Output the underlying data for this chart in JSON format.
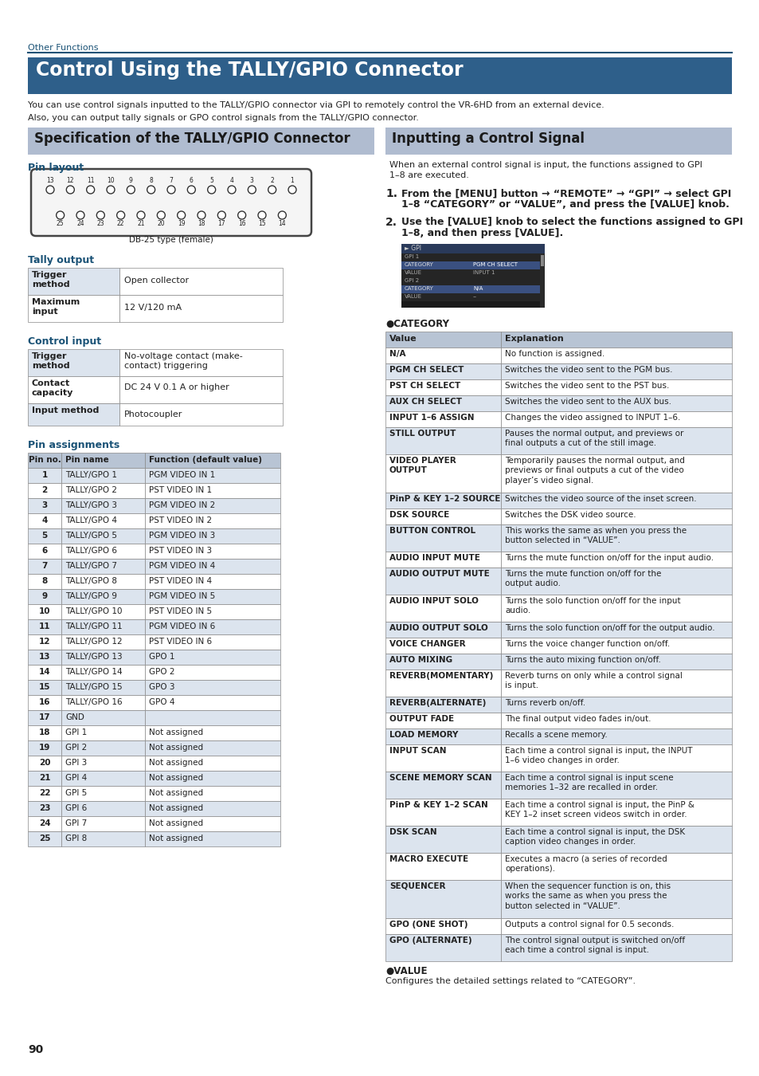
{
  "page_bg": "#ffffff",
  "section_label": "Other Functions",
  "section_label_color": "#1a5276",
  "main_title": "Control Using the TALLY/GPIO Connector",
  "main_title_bg": "#2e5f8a",
  "main_title_color": "#ffffff",
  "intro_lines": [
    "You can use control signals inputted to the TALLY/GPIO connector via GPI to remotely control the VR-6HD from an external device.",
    "Also, you can output tally signals or GPO control signals from the TALLY/GPIO connector."
  ],
  "left_section_title": "Specification of the TALLY/GPIO Connector",
  "right_section_title": "Inputting a Control Signal",
  "section_header_bg": "#b0bcd0",
  "pin_layout_label": "Pin layout",
  "pin_label_color": "#1a5276",
  "db25_label": "DB-25 type (female)",
  "tally_output_label": "Tally output",
  "control_input_label": "Control input",
  "pin_assignments_label": "Pin assignments",
  "tally_output_rows": [
    [
      "Trigger\nmethod",
      "Open collector"
    ],
    [
      "Maximum\ninput",
      "12 V/120 mA"
    ]
  ],
  "control_input_rows": [
    [
      "Trigger\nmethod",
      "No-voltage contact (make-\ncontact) triggering"
    ],
    [
      "Contact\ncapacity",
      "DC 24 V 0.1 A or higher"
    ],
    [
      "Input method",
      "Photocoupler"
    ]
  ],
  "pin_assignments_header": [
    "Pin no.",
    "Pin name",
    "Function (default value)"
  ],
  "pin_assignments_rows": [
    [
      "1",
      "TALLY/GPO 1",
      "PGM VIDEO IN 1"
    ],
    [
      "2",
      "TALLY/GPO 2",
      "PST VIDEO IN 1"
    ],
    [
      "3",
      "TALLY/GPO 3",
      "PGM VIDEO IN 2"
    ],
    [
      "4",
      "TALLY/GPO 4",
      "PST VIDEO IN 2"
    ],
    [
      "5",
      "TALLY/GPO 5",
      "PGM VIDEO IN 3"
    ],
    [
      "6",
      "TALLY/GPO 6",
      "PST VIDEO IN 3"
    ],
    [
      "7",
      "TALLY/GPO 7",
      "PGM VIDEO IN 4"
    ],
    [
      "8",
      "TALLY/GPO 8",
      "PST VIDEO IN 4"
    ],
    [
      "9",
      "TALLY/GPO 9",
      "PGM VIDEO IN 5"
    ],
    [
      "10",
      "TALLY/GPO 10",
      "PST VIDEO IN 5"
    ],
    [
      "11",
      "TALLY/GPO 11",
      "PGM VIDEO IN 6"
    ],
    [
      "12",
      "TALLY/GPO 12",
      "PST VIDEO IN 6"
    ],
    [
      "13",
      "TALLY/GPO 13",
      "GPO 1"
    ],
    [
      "14",
      "TALLY/GPO 14",
      "GPO 2"
    ],
    [
      "15",
      "TALLY/GPO 15",
      "GPO 3"
    ],
    [
      "16",
      "TALLY/GPO 16",
      "GPO 4"
    ],
    [
      "17",
      "GND",
      ""
    ],
    [
      "18",
      "GPI 1",
      "Not assigned"
    ],
    [
      "19",
      "GPI 2",
      "Not assigned"
    ],
    [
      "20",
      "GPI 3",
      "Not assigned"
    ],
    [
      "21",
      "GPI 4",
      "Not assigned"
    ],
    [
      "22",
      "GPI 5",
      "Not assigned"
    ],
    [
      "23",
      "GPI 6",
      "Not assigned"
    ],
    [
      "24",
      "GPI 7",
      "Not assigned"
    ],
    [
      "25",
      "GPI 8",
      "Not assigned"
    ]
  ],
  "category_rows": [
    [
      "N/A",
      "No function is assigned."
    ],
    [
      "PGM CH SELECT",
      "Switches the video sent to the PGM bus."
    ],
    [
      "PST CH SELECT",
      "Switches the video sent to the PST bus."
    ],
    [
      "AUX CH SELECT",
      "Switches the video sent to the AUX bus."
    ],
    [
      "INPUT 1–6 ASSIGN",
      "Changes the video assigned to INPUT 1–6."
    ],
    [
      "STILL OUTPUT",
      "Pauses the normal output, and previews or\nfinal outputs a cut of the still image."
    ],
    [
      "VIDEO PLAYER\nOUTPUT",
      "Temporarily pauses the normal output, and\npreviews or final outputs a cut of the video\nplayer’s video signal."
    ],
    [
      "PinP & KEY 1–2 SOURCE",
      "Switches the video source of the inset screen."
    ],
    [
      "DSK SOURCE",
      "Switches the DSK video source."
    ],
    [
      "BUTTON CONTROL",
      "This works the same as when you press the\nbutton selected in “VALUE”."
    ],
    [
      "AUDIO INPUT MUTE",
      "Turns the mute function on/off for the input audio."
    ],
    [
      "AUDIO OUTPUT MUTE",
      "Turns the mute function on/off for the\noutput audio."
    ],
    [
      "AUDIO INPUT SOLO",
      "Turns the solo function on/off for the input\naudio."
    ],
    [
      "AUDIO OUTPUT SOLO",
      "Turns the solo function on/off for the output audio."
    ],
    [
      "VOICE CHANGER",
      "Turns the voice changer function on/off."
    ],
    [
      "AUTO MIXING",
      "Turns the auto mixing function on/off."
    ],
    [
      "REVERB(MOMENTARY)",
      "Reverb turns on only while a control signal\nis input."
    ],
    [
      "REVERB(ALTERNATE)",
      "Turns reverb on/off."
    ],
    [
      "OUTPUT FADE",
      "The final output video fades in/out."
    ],
    [
      "LOAD MEMORY",
      "Recalls a scene memory."
    ],
    [
      "INPUT SCAN",
      "Each time a control signal is input, the INPUT\n1–6 video changes in order."
    ],
    [
      "SCENE MEMORY SCAN",
      "Each time a control signal is input scene\nmemories 1–32 are recalled in order."
    ],
    [
      "PinP & KEY 1–2 SCAN",
      "Each time a control signal is input, the PinP &\nKEY 1–2 inset screen videos switch in order."
    ],
    [
      "DSK SCAN",
      "Each time a control signal is input, the DSK\ncaption video changes in order."
    ],
    [
      "MACRO EXECUTE",
      "Executes a macro (a series of recorded\noperations)."
    ],
    [
      "SEQUENCER",
      "When the sequencer function is on, this\nworks the same as when you press the\nbutton selected in “VALUE”."
    ],
    [
      "GPO (ONE SHOT)",
      "Outputs a control signal for 0.5 seconds."
    ],
    [
      "GPO (ALTERNATE)",
      "The control signal output is switched on/off\neach time a control signal is input."
    ]
  ],
  "value_label": "●VALUE",
  "value_text": "Configures the detailed settings related to “CATEGORY”.",
  "page_number": "90",
  "table_header_bg": "#b8c4d4",
  "table_row_alt_bg": "#dce4ee",
  "table_row_bg": "#ffffff",
  "border_color": "#888888"
}
